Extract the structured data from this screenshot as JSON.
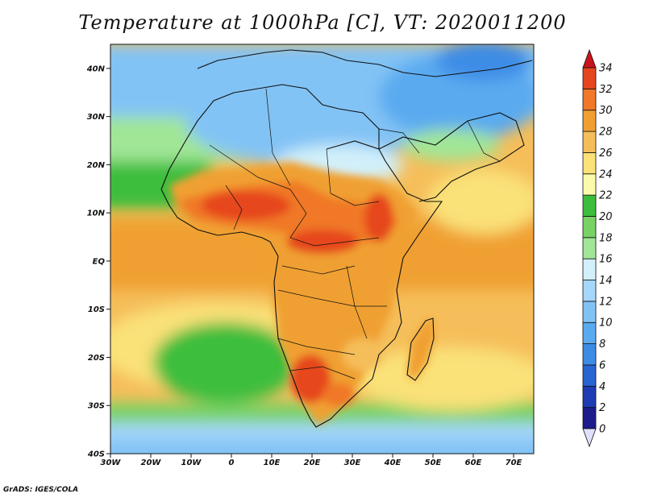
{
  "title": "Temperature at 1000hPa [C], VT: 2020011200",
  "credit": "GrADS: IGES/COLA",
  "map": {
    "lon_range": [
      -30,
      75
    ],
    "lat_range": [
      -40,
      45
    ],
    "lat_ticks": [
      {
        "value": 40,
        "label": "40N"
      },
      {
        "value": 30,
        "label": "30N"
      },
      {
        "value": 20,
        "label": "20N"
      },
      {
        "value": 10,
        "label": "10N"
      },
      {
        "value": 0,
        "label": "EQ"
      },
      {
        "value": -10,
        "label": "10S"
      },
      {
        "value": -20,
        "label": "20S"
      },
      {
        "value": -30,
        "label": "30S"
      },
      {
        "value": -40,
        "label": "40S"
      }
    ],
    "lon_ticks": [
      {
        "value": -30,
        "label": "30W"
      },
      {
        "value": -20,
        "label": "20W"
      },
      {
        "value": -10,
        "label": "10W"
      },
      {
        "value": 0,
        "label": "0"
      },
      {
        "value": 10,
        "label": "10E"
      },
      {
        "value": 20,
        "label": "20E"
      },
      {
        "value": 30,
        "label": "30E"
      },
      {
        "value": 40,
        "label": "40E"
      },
      {
        "value": 50,
        "label": "50E"
      },
      {
        "value": 60,
        "label": "60E"
      },
      {
        "value": 70,
        "label": "70E"
      }
    ]
  },
  "colorbar": {
    "levels": [
      "0",
      "2",
      "4",
      "6",
      "8",
      "10",
      "12",
      "14",
      "16",
      "18",
      "20",
      "22",
      "24",
      "26",
      "28",
      "30",
      "32",
      "34"
    ],
    "colors": [
      "#1c1c8c",
      "#1e3cb4",
      "#2864d2",
      "#3c8ce6",
      "#5aaaf0",
      "#82c3f5",
      "#a5d7fa",
      "#d2f0fa",
      "#a0e696",
      "#78d264",
      "#3cbe3c",
      "#fafaaa",
      "#fae178",
      "#f5be5a",
      "#f0a032",
      "#f07828",
      "#e6461e"
    ],
    "below_color": "#e0e0ff",
    "above_color": "#c8141e"
  }
}
